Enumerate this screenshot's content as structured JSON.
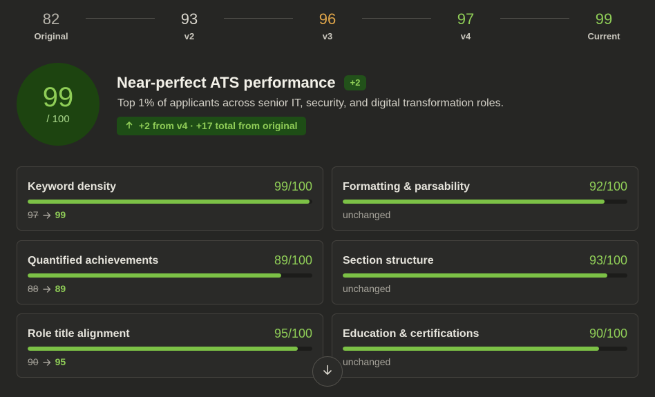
{
  "timeline": [
    {
      "score": "82",
      "label": "Original",
      "color": "#b8b5ac"
    },
    {
      "score": "93",
      "label": "v2",
      "color": "#d8d5cc"
    },
    {
      "score": "96",
      "label": "v3",
      "color": "#e0a64a"
    },
    {
      "score": "97",
      "label": "v4",
      "color": "#8fcd57"
    },
    {
      "score": "99",
      "label": "Current",
      "color": "#8fcd57"
    }
  ],
  "hero": {
    "score": "99",
    "denominator": "/ 100",
    "title": "Near-perfect ATS performance",
    "delta": "+2",
    "subtitle": "Top 1% of applicants across senior IT, security, and digital transformation roles.",
    "trend": "+2 from v4 · +17 total from original"
  },
  "metrics": [
    {
      "name": "Keyword density",
      "score": "99/100",
      "value": 99,
      "from": "97",
      "to": "99"
    },
    {
      "name": "Formatting & parsability",
      "score": "92/100",
      "value": 92,
      "note": "unchanged"
    },
    {
      "name": "Quantified achievements",
      "score": "89/100",
      "value": 89,
      "from": "88",
      "to": "89"
    },
    {
      "name": "Section structure",
      "score": "93/100",
      "value": 93,
      "note": "unchanged"
    },
    {
      "name": "Role title alignment",
      "score": "95/100",
      "value": 95,
      "from": "90",
      "to": "95"
    },
    {
      "name": "Education & certifications",
      "score": "90/100",
      "value": 90,
      "note": "unchanged"
    }
  ],
  "colors": {
    "accent": "#8fcd57",
    "bar": "#7cc146",
    "background": "#262624"
  },
  "icons": {
    "trend": "arrow-up-icon",
    "transition": "arrow-right-icon",
    "scroll": "arrow-down-icon"
  }
}
